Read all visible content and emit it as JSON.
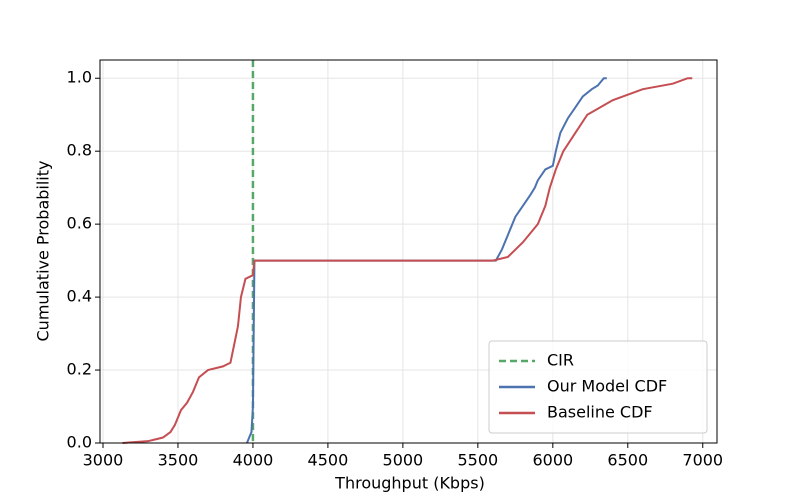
{
  "chart_data": {
    "type": "line",
    "xlabel": "Throughput (Kbps)",
    "ylabel": "Cumulative Probability",
    "xlim": [
      2980,
      7095
    ],
    "ylim": [
      0,
      1.05
    ],
    "xticks": [
      3000,
      3500,
      4000,
      4500,
      5000,
      5500,
      6000,
      6500,
      7000
    ],
    "yticks": [
      {
        "value": 0,
        "label": "0.0"
      },
      {
        "value": 0.2,
        "label": "0.2"
      },
      {
        "value": 0.4,
        "label": "0.4"
      },
      {
        "value": 0.6,
        "label": "0.6"
      },
      {
        "value": 0.8,
        "label": "0.8"
      },
      {
        "value": 1.0,
        "label": "1.0"
      }
    ],
    "grid": true,
    "legend": "lower right",
    "vline": {
      "name": "CIR",
      "x": 4000,
      "color": "#55a868"
    },
    "series": [
      {
        "name": "Our Model CDF",
        "color": "#4c72b0",
        "x": [
          3960,
          3990,
          4000,
          4010,
          5620,
          5660,
          5700,
          5750,
          5800,
          5850,
          5880,
          5900,
          5950,
          6000,
          6020,
          6050,
          6100,
          6150,
          6200,
          6260,
          6300,
          6340,
          6360
        ],
        "values": [
          0,
          0.03,
          0.1,
          0.5,
          0.5,
          0.53,
          0.57,
          0.62,
          0.65,
          0.68,
          0.7,
          0.72,
          0.75,
          0.76,
          0.8,
          0.85,
          0.89,
          0.92,
          0.95,
          0.97,
          0.98,
          1.0,
          1.0
        ]
      },
      {
        "name": "Baseline CDF",
        "color": "#c44e52",
        "x": [
          3130,
          3300,
          3350,
          3400,
          3450,
          3480,
          3520,
          3560,
          3600,
          3640,
          3700,
          3800,
          3850,
          3880,
          3900,
          3920,
          3950,
          4000,
          4010,
          4500,
          5600,
          5700,
          5800,
          5900,
          5950,
          5980,
          6020,
          6070,
          6150,
          6230,
          6400,
          6600,
          6800,
          6900,
          6930
        ],
        "values": [
          0,
          0.005,
          0.01,
          0.015,
          0.03,
          0.05,
          0.09,
          0.11,
          0.14,
          0.18,
          0.2,
          0.21,
          0.22,
          0.28,
          0.32,
          0.4,
          0.45,
          0.46,
          0.5,
          0.5,
          0.5,
          0.51,
          0.55,
          0.6,
          0.65,
          0.7,
          0.75,
          0.8,
          0.85,
          0.9,
          0.94,
          0.97,
          0.985,
          1.0,
          1.0
        ]
      }
    ]
  }
}
